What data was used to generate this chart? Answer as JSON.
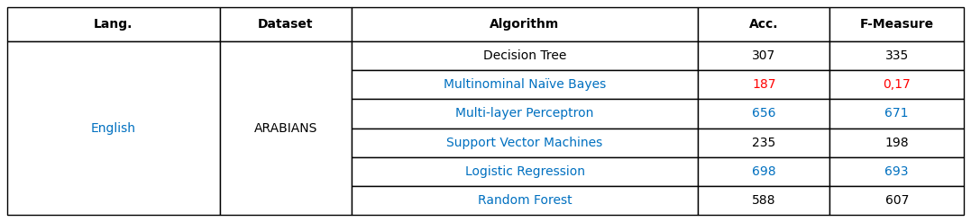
{
  "headers": [
    "Lang.",
    "Dataset",
    "Algorithm",
    "Acc.",
    "F-Measure"
  ],
  "lang": "English",
  "dataset": "ARABIANS",
  "rows": [
    [
      "Decision Tree",
      "307",
      "335"
    ],
    [
      "Multinominal Naïve Bayes",
      "187",
      "0,17"
    ],
    [
      "Multi-layer Perceptron",
      "656",
      "671"
    ],
    [
      "Support Vector Machines",
      "235",
      "198"
    ],
    [
      "Logistic Regression",
      "698",
      "693"
    ],
    [
      "Random Forest",
      "588",
      "607"
    ]
  ],
  "header_color": "#000000",
  "cell_text_color_blue": "#0070C0",
  "cell_text_color_red": "#FF0000",
  "cell_text_color_black": "#000000",
  "border_color": "#000000",
  "bg_color": "#ffffff",
  "algo_colors": [
    "#000000",
    "#0070C0",
    "#0070C0",
    "#0070C0",
    "#0070C0",
    "#0070C0"
  ],
  "acc_colors": [
    "#000000",
    "#FF0000",
    "#0070C0",
    "#000000",
    "#0070C0",
    "#000000"
  ],
  "fmeasure_colors": [
    "#000000",
    "#FF0000",
    "#0070C0",
    "#000000",
    "#0070C0",
    "#000000"
  ],
  "figsize": [
    10.77,
    2.47
  ],
  "dpi": 100
}
